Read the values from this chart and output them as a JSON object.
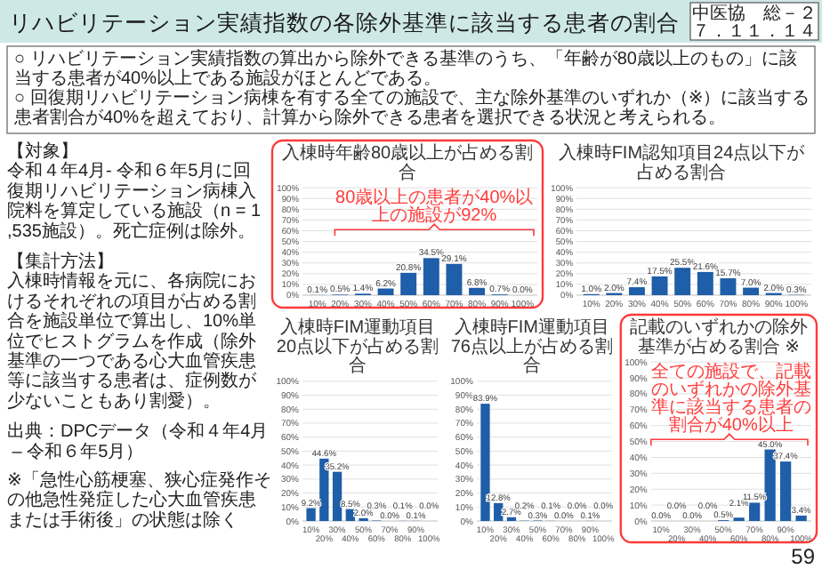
{
  "chart_data": [
    {
      "type": "other",
      "title": "リハビリテーション実績指数の各除外基準に該当する患者の割合",
      "annotations": [
        "中医協　総－２",
        "７．１１．１４",
        "○ リハビリテーション実績指数の算出から除外できる基準のうち、「年齢が80歳以上のもの」に該当する患者が40%以上である施設がほとんどである。",
        "○ 回復期リハビリテーション病棟を有する全ての施設で、主な除外基準のいずれか（※）に該当する患者割合が40%を超えており、計算から除外できる患者を選択できる状況と考えられる。",
        "【対象】",
        "令和４年4月- 令和６年5月に回復期リハビリテーション病棟入院料を算定している施設（n = 1,535施設）。死亡症例は除外。",
        "【集計方法】",
        "入棟時情報を元に、各病院におけるそれぞれの項目が占める割合を施設単位で算出し、10%単位でヒストグラムを作成（除外基準の一つである心大血管疾患等に該当する患者は、症例数が少ないこともあり割愛）。",
        "出典：DPCデータ（令和４年4月 – 令和６年5月）",
        "※「急性心筋梗塞、狭心症発作その他急性発症した心大血管疾患または手術後」の状態は除く",
        "59"
      ]
    },
    {
      "type": "bar",
      "title": "入棟時年齢80歳以上が占める割合",
      "categories": [
        "10%",
        "20%",
        "30%",
        "40%",
        "50%",
        "60%",
        "70%",
        "80%",
        "90%",
        "100%"
      ],
      "values": [
        0.1,
        0.5,
        1.4,
        6.2,
        20.8,
        34.5,
        29.1,
        6.8,
        0.7,
        0.0
      ],
      "value_labels": [
        "0.1%",
        "0.5%",
        "1.4%",
        "6.2%",
        "20.8%",
        "34.5%",
        "29.1%",
        "6.8%",
        "0.7%",
        "0.0%"
      ],
      "color": "#1f5ea8",
      "ylim": [
        0,
        100
      ],
      "yticks": [
        {
          "value": 0,
          "label": "0%"
        },
        {
          "value": 10,
          "label": "10%"
        },
        {
          "value": 20,
          "label": "20%"
        },
        {
          "value": 30,
          "label": "30%"
        },
        {
          "value": 40,
          "label": "40%"
        },
        {
          "value": 50,
          "label": "50%"
        },
        {
          "value": 60,
          "label": "60%"
        },
        {
          "value": 70,
          "label": "70%"
        },
        {
          "value": 80,
          "label": "80%"
        },
        {
          "value": 90,
          "label": "90%"
        },
        {
          "value": 100,
          "label": "100%"
        }
      ],
      "grid": "y",
      "annotations": [
        "80歳以上の患者が40%以上の施設が92%"
      ]
    },
    {
      "type": "bar",
      "title": "入棟時FIM認知項目24点以下が占める割合",
      "categories": [
        "10%",
        "20%",
        "30%",
        "40%",
        "50%",
        "60%",
        "70%",
        "80%",
        "90%",
        "100%"
      ],
      "values": [
        1.0,
        2.0,
        7.4,
        17.5,
        25.5,
        21.6,
        15.7,
        7.0,
        2.0,
        0.3
      ],
      "value_labels": [
        "1.0%",
        "2.0%",
        "7.4%",
        "17.5%",
        "25.5%",
        "21.6%",
        "15.7%",
        "7.0%",
        "2.0%",
        "0.3%"
      ],
      "color": "#1f5ea8",
      "ylim": [
        0,
        100
      ],
      "yticks": [
        {
          "value": 0,
          "label": "0%"
        },
        {
          "value": 10,
          "label": "10%"
        },
        {
          "value": 20,
          "label": "20%"
        },
        {
          "value": 30,
          "label": "30%"
        },
        {
          "value": 40,
          "label": "40%"
        },
        {
          "value": 50,
          "label": "50%"
        },
        {
          "value": 60,
          "label": "60%"
        },
        {
          "value": 70,
          "label": "70%"
        },
        {
          "value": 80,
          "label": "80%"
        },
        {
          "value": 90,
          "label": "90%"
        },
        {
          "value": 100,
          "label": "100%"
        }
      ],
      "grid": "y"
    },
    {
      "type": "bar",
      "title": "入棟時FIM運動項目20点以下が占める割合",
      "categories": [
        "10%",
        "20%",
        "30%",
        "40%",
        "50%",
        "60%",
        "70%",
        "80%",
        "90%",
        "100%"
      ],
      "values": [
        9.2,
        44.6,
        35.2,
        8.5,
        2.0,
        0.3,
        0.0,
        0.1,
        0.1,
        0.0
      ],
      "value_labels": [
        "9.2%",
        "44.6%",
        "35.2%",
        "8.5%",
        "2.0%",
        "0.3%",
        "0.0%",
        "0.1%",
        "0.1%",
        "0.0%"
      ],
      "color": "#1f5ea8",
      "ylim": [
        0,
        100
      ],
      "yticks": [
        {
          "value": 0,
          "label": "0%"
        },
        {
          "value": 10,
          "label": "10%"
        },
        {
          "value": 20,
          "label": "20%"
        },
        {
          "value": 30,
          "label": "30%"
        },
        {
          "value": 40,
          "label": "40%"
        },
        {
          "value": 50,
          "label": "50%"
        },
        {
          "value": 60,
          "label": "60%"
        },
        {
          "value": 70,
          "label": "70%"
        },
        {
          "value": 80,
          "label": "80%"
        },
        {
          "value": 90,
          "label": "90%"
        },
        {
          "value": 100,
          "label": "100%"
        }
      ],
      "grid": "y"
    },
    {
      "type": "bar",
      "title": "入棟時FIM運動項目76点以上が占める割合",
      "categories": [
        "10%",
        "20%",
        "30%",
        "40%",
        "50%",
        "60%",
        "70%",
        "80%",
        "90%",
        "100%"
      ],
      "values": [
        83.9,
        12.8,
        2.7,
        0.2,
        0.3,
        0.1,
        0.0,
        0.0,
        0.1,
        0.0
      ],
      "value_labels": [
        "83.9%",
        "12.8%",
        "2.7%",
        "0.2%",
        "0.3%",
        "0.1%",
        "0.0%",
        "0.0%",
        "0.1%",
        "0.0%"
      ],
      "color": "#1f5ea8",
      "ylim": [
        0,
        100
      ],
      "yticks": [
        {
          "value": 0,
          "label": "0%"
        },
        {
          "value": 10,
          "label": "10%"
        },
        {
          "value": 20,
          "label": "20%"
        },
        {
          "value": 30,
          "label": "30%"
        },
        {
          "value": 40,
          "label": "40%"
        },
        {
          "value": 50,
          "label": "50%"
        },
        {
          "value": 60,
          "label": "60%"
        },
        {
          "value": 70,
          "label": "70%"
        },
        {
          "value": 80,
          "label": "80%"
        },
        {
          "value": 90,
          "label": "90%"
        },
        {
          "value": 100,
          "label": "100%"
        }
      ],
      "grid": "y"
    },
    {
      "type": "bar",
      "title": "記載のいずれかの除外基準が占める割合 ※",
      "categories": [
        "10%",
        "20%",
        "30%",
        "40%",
        "50%",
        "60%",
        "70%",
        "80%",
        "90%",
        "100%"
      ],
      "values": [
        0.0,
        0.0,
        0.0,
        0.0,
        0.5,
        2.1,
        11.5,
        45.0,
        37.4,
        3.4
      ],
      "value_labels": [
        "0.0%",
        "0.0%",
        "0.0%",
        "0.0%",
        "0.5%",
        "2.1%",
        "11.5%",
        "45.0%",
        "37.4%",
        "3.4%"
      ],
      "color": "#1f5ea8",
      "ylim": [
        0,
        100
      ],
      "yticks": [
        {
          "value": 0,
          "label": "0%"
        },
        {
          "value": 10,
          "label": "10%"
        },
        {
          "value": 20,
          "label": "20%"
        },
        {
          "value": 30,
          "label": "30%"
        },
        {
          "value": 40,
          "label": "40%"
        },
        {
          "value": 50,
          "label": "50%"
        },
        {
          "value": 60,
          "label": "60%"
        },
        {
          "value": 70,
          "label": "70%"
        },
        {
          "value": 80,
          "label": "80%"
        },
        {
          "value": 90,
          "label": "90%"
        },
        {
          "value": 100,
          "label": "100%"
        }
      ],
      "grid": "y",
      "annotations": [
        "全ての施設で、記載のいずれかの除外基準に該当する患者の割合が40%以上"
      ]
    }
  ]
}
